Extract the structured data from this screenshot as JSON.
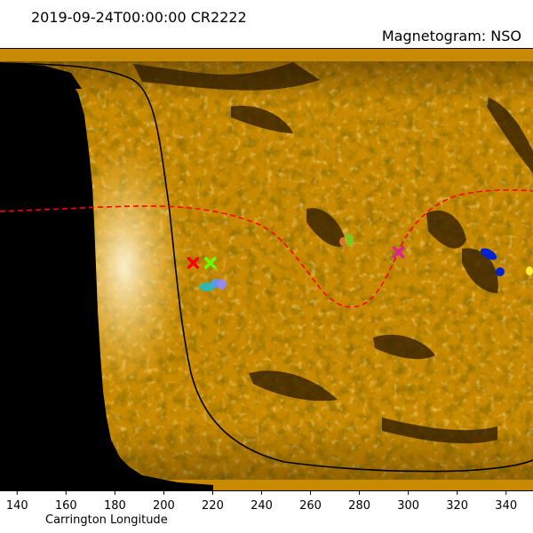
{
  "header": {
    "title_left": "2019-09-24T00:00:00 CR2222",
    "title_right": "Magnetogram: NSO"
  },
  "axes": {
    "xlabel": "Carrington Longitude",
    "xticks": [
      "140",
      "160",
      "180",
      "200",
      "220",
      "240",
      "260",
      "280",
      "300",
      "320",
      "340"
    ],
    "xlim": [
      133,
      351
    ]
  },
  "colors": {
    "map_base": "#c88a00",
    "map_bright": "#ffd060",
    "map_dark": "#3a2500",
    "neutral_line": "#ff0000",
    "boundary_curve": "#000000",
    "occulted": "#000000"
  },
  "markers": [
    {
      "name": "red-cross",
      "lon": 212,
      "color": "#ff0000",
      "symbol": "x"
    },
    {
      "name": "green-cross",
      "lon": 219,
      "color": "#66ff00",
      "symbol": "x"
    },
    {
      "name": "magenta-cross",
      "lon": 296,
      "color": "#dd2299",
      "symbol": "x"
    }
  ]
}
